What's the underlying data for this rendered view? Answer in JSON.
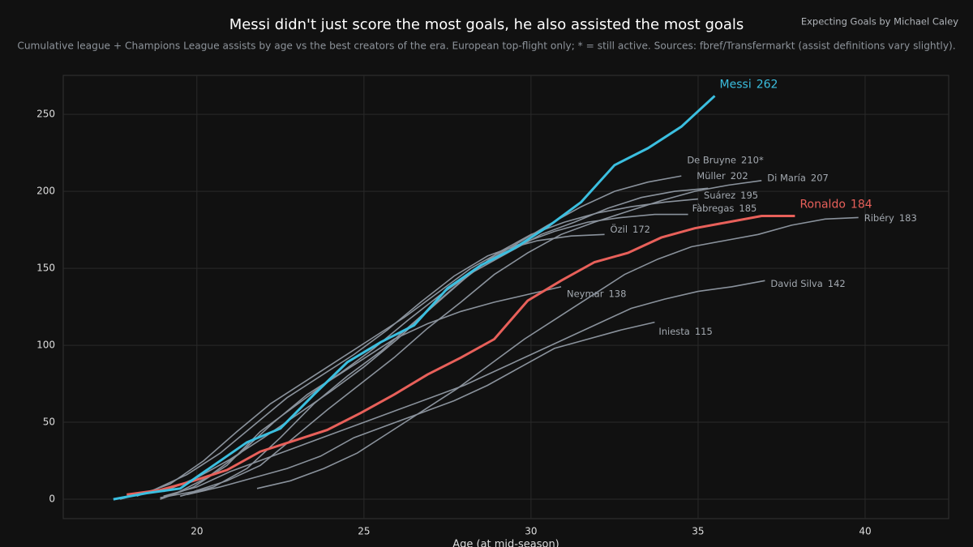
{
  "chart_data": {
    "type": "line",
    "title": "Messi didn't just score the most goals, he also assisted the most goals",
    "subtitle": "Cumulative league + Champions League assists by age vs the best creators of the era. European top-flight only; * = still active. Sources: fbref/Transfermarkt (assist definitions vary slightly).",
    "credit": "Expecting Goals by Michael Caley",
    "x_label": "Age (at mid-season)",
    "xlim": [
      16.0,
      42.5
    ],
    "ylim": [
      -12.6,
      275.3
    ],
    "xticks": [
      20,
      25,
      30,
      35,
      40
    ],
    "yticks": [
      0,
      50,
      100,
      150,
      200,
      250
    ],
    "grid": true,
    "series": [
      {
        "name": "De Bruyne",
        "color": "#8a929c",
        "x": [
          19.5,
          20.5,
          21.5,
          22.5,
          23.5,
          24.5,
          25.5,
          26.5,
          27.5,
          28.5,
          29.5,
          30.5,
          31.5,
          32.5,
          33.5,
          34.5
        ],
        "values": [
          2,
          8,
          20,
          40,
          62,
          80,
          96,
          115,
          134,
          152,
          165,
          178,
          190,
          200,
          206,
          210
        ],
        "value_labels": [
          null,
          null,
          null,
          null,
          null,
          null,
          null,
          null,
          null,
          null,
          null,
          null,
          null,
          null,
          null,
          "210*"
        ]
      },
      {
        "name": "Müller",
        "color": "#8a929c",
        "x": [
          19.3,
          20.3,
          21.3,
          22.3,
          23.3,
          24.3,
          25.3,
          26.3,
          27.3,
          28.3,
          29.3,
          30.3,
          31.3,
          32.3,
          33.3,
          34.3,
          35.3
        ],
        "values": [
          3,
          14,
          30,
          50,
          68,
          82,
          98,
          116,
          133,
          148,
          160,
          172,
          180,
          189,
          196,
          200,
          202
        ]
      },
      {
        "name": "Di María",
        "color": "#8a929c",
        "x": [
          18.9,
          19.9,
          20.9,
          21.9,
          22.9,
          23.9,
          24.9,
          25.9,
          26.9,
          27.9,
          28.9,
          29.9,
          30.9,
          31.9,
          32.9,
          33.9,
          34.9,
          35.9,
          36.9
        ],
        "values": [
          1,
          5,
          12,
          22,
          40,
          58,
          75,
          92,
          111,
          128,
          146,
          160,
          172,
          180,
          187,
          194,
          200,
          204,
          207
        ]
      },
      {
        "name": "Suárez",
        "color": "#8a929c",
        "x": [
          19,
          20,
          21,
          22,
          23,
          24,
          25,
          26,
          27,
          28,
          29,
          30,
          31,
          32,
          33,
          34,
          35
        ],
        "values": [
          5,
          14,
          26,
          40,
          55,
          70,
          86,
          104,
          124,
          143,
          160,
          172,
          180,
          186,
          190,
          193,
          195
        ]
      },
      {
        "name": "Fàbregas",
        "color": "#8a929c",
        "x": [
          17.7,
          18.7,
          19.7,
          20.7,
          21.7,
          22.7,
          23.7,
          24.7,
          25.7,
          26.7,
          27.7,
          28.7,
          29.7,
          30.7,
          31.7,
          32.7,
          33.7,
          34.7
        ],
        "values": [
          0,
          6,
          16,
          30,
          48,
          66,
          80,
          94,
          110,
          128,
          145,
          158,
          166,
          174,
          180,
          183,
          185,
          185
        ]
      },
      {
        "name": "Özil",
        "color": "#8a929c",
        "x": [
          18.2,
          19.2,
          20.2,
          21.2,
          22.2,
          23.2,
          24.2,
          25.2,
          26.2,
          27.2,
          28.2,
          29.2,
          30.2,
          31.2,
          32.2
        ],
        "values": [
          2,
          10,
          25,
          44,
          62,
          76,
          90,
          104,
          118,
          134,
          150,
          162,
          168,
          171,
          172
        ]
      },
      {
        "name": "Neymar",
        "color": "#8a929c",
        "x": [
          18.9,
          19.9,
          20.9,
          21.9,
          22.9,
          23.9,
          24.9,
          25.9,
          26.9,
          27.9,
          28.9,
          29.9,
          30.9
        ],
        "values": [
          0,
          8,
          22,
          44,
          60,
          76,
          90,
          104,
          114,
          122,
          128,
          133,
          138
        ]
      },
      {
        "name": "David Silva",
        "color": "#8a929c",
        "x": [
          19,
          20,
          21,
          22,
          23,
          24,
          25,
          26,
          27,
          28,
          29,
          30,
          31,
          32,
          33,
          34,
          35,
          36,
          37
        ],
        "values": [
          2,
          8,
          18,
          26,
          34,
          42,
          50,
          58,
          66,
          74,
          84,
          94,
          104,
          114,
          124,
          130,
          135,
          138,
          142
        ]
      },
      {
        "name": "Iniesta",
        "color": "#8a929c",
        "x": [
          19.7,
          20.7,
          21.7,
          22.7,
          23.7,
          24.7,
          25.7,
          26.7,
          27.7,
          28.7,
          29.7,
          30.7,
          31.7,
          32.7,
          33.7
        ],
        "values": [
          3,
          8,
          14,
          20,
          28,
          40,
          48,
          56,
          64,
          74,
          86,
          98,
          104,
          110,
          115
        ]
      },
      {
        "name": "Ribéry",
        "color": "#8a929c",
        "x": [
          21.8,
          22.8,
          23.8,
          24.8,
          25.8,
          26.8,
          27.8,
          28.8,
          29.8,
          30.8,
          31.8,
          32.8,
          33.8,
          34.8,
          35.8,
          36.8,
          37.8,
          38.8,
          39.8
        ],
        "values": [
          7,
          12,
          20,
          30,
          44,
          58,
          72,
          88,
          104,
          118,
          132,
          146,
          156,
          164,
          168,
          172,
          178,
          182,
          183
        ]
      },
      {
        "name": "Ronaldo",
        "color": "#e8605a",
        "x": [
          17.9,
          18.9,
          19.9,
          20.9,
          21.9,
          22.9,
          23.9,
          24.9,
          25.9,
          26.9,
          27.9,
          28.9,
          29.9,
          30.9,
          31.9,
          32.9,
          33.9,
          34.9,
          35.9,
          36.9,
          37.9
        ],
        "values": [
          3,
          6,
          12,
          19,
          31,
          38,
          45,
          56,
          68,
          81,
          92,
          104,
          129,
          142,
          154,
          160,
          170,
          176,
          180,
          184,
          184
        ]
      },
      {
        "name": "Messi",
        "color": "#3bbfe0",
        "x": [
          17.5,
          18.5,
          19.5,
          20.5,
          21.5,
          22.5,
          23.5,
          24.5,
          25.5,
          26.5,
          27.5,
          28.5,
          29.5,
          30.5,
          31.5,
          32.5,
          33.5,
          34.5,
          35.5
        ],
        "values": [
          0,
          4,
          7,
          22,
          37,
          46,
          68,
          89,
          102,
          113,
          137,
          152,
          163,
          177,
          193,
          217,
          228,
          242,
          262
        ]
      }
    ]
  }
}
